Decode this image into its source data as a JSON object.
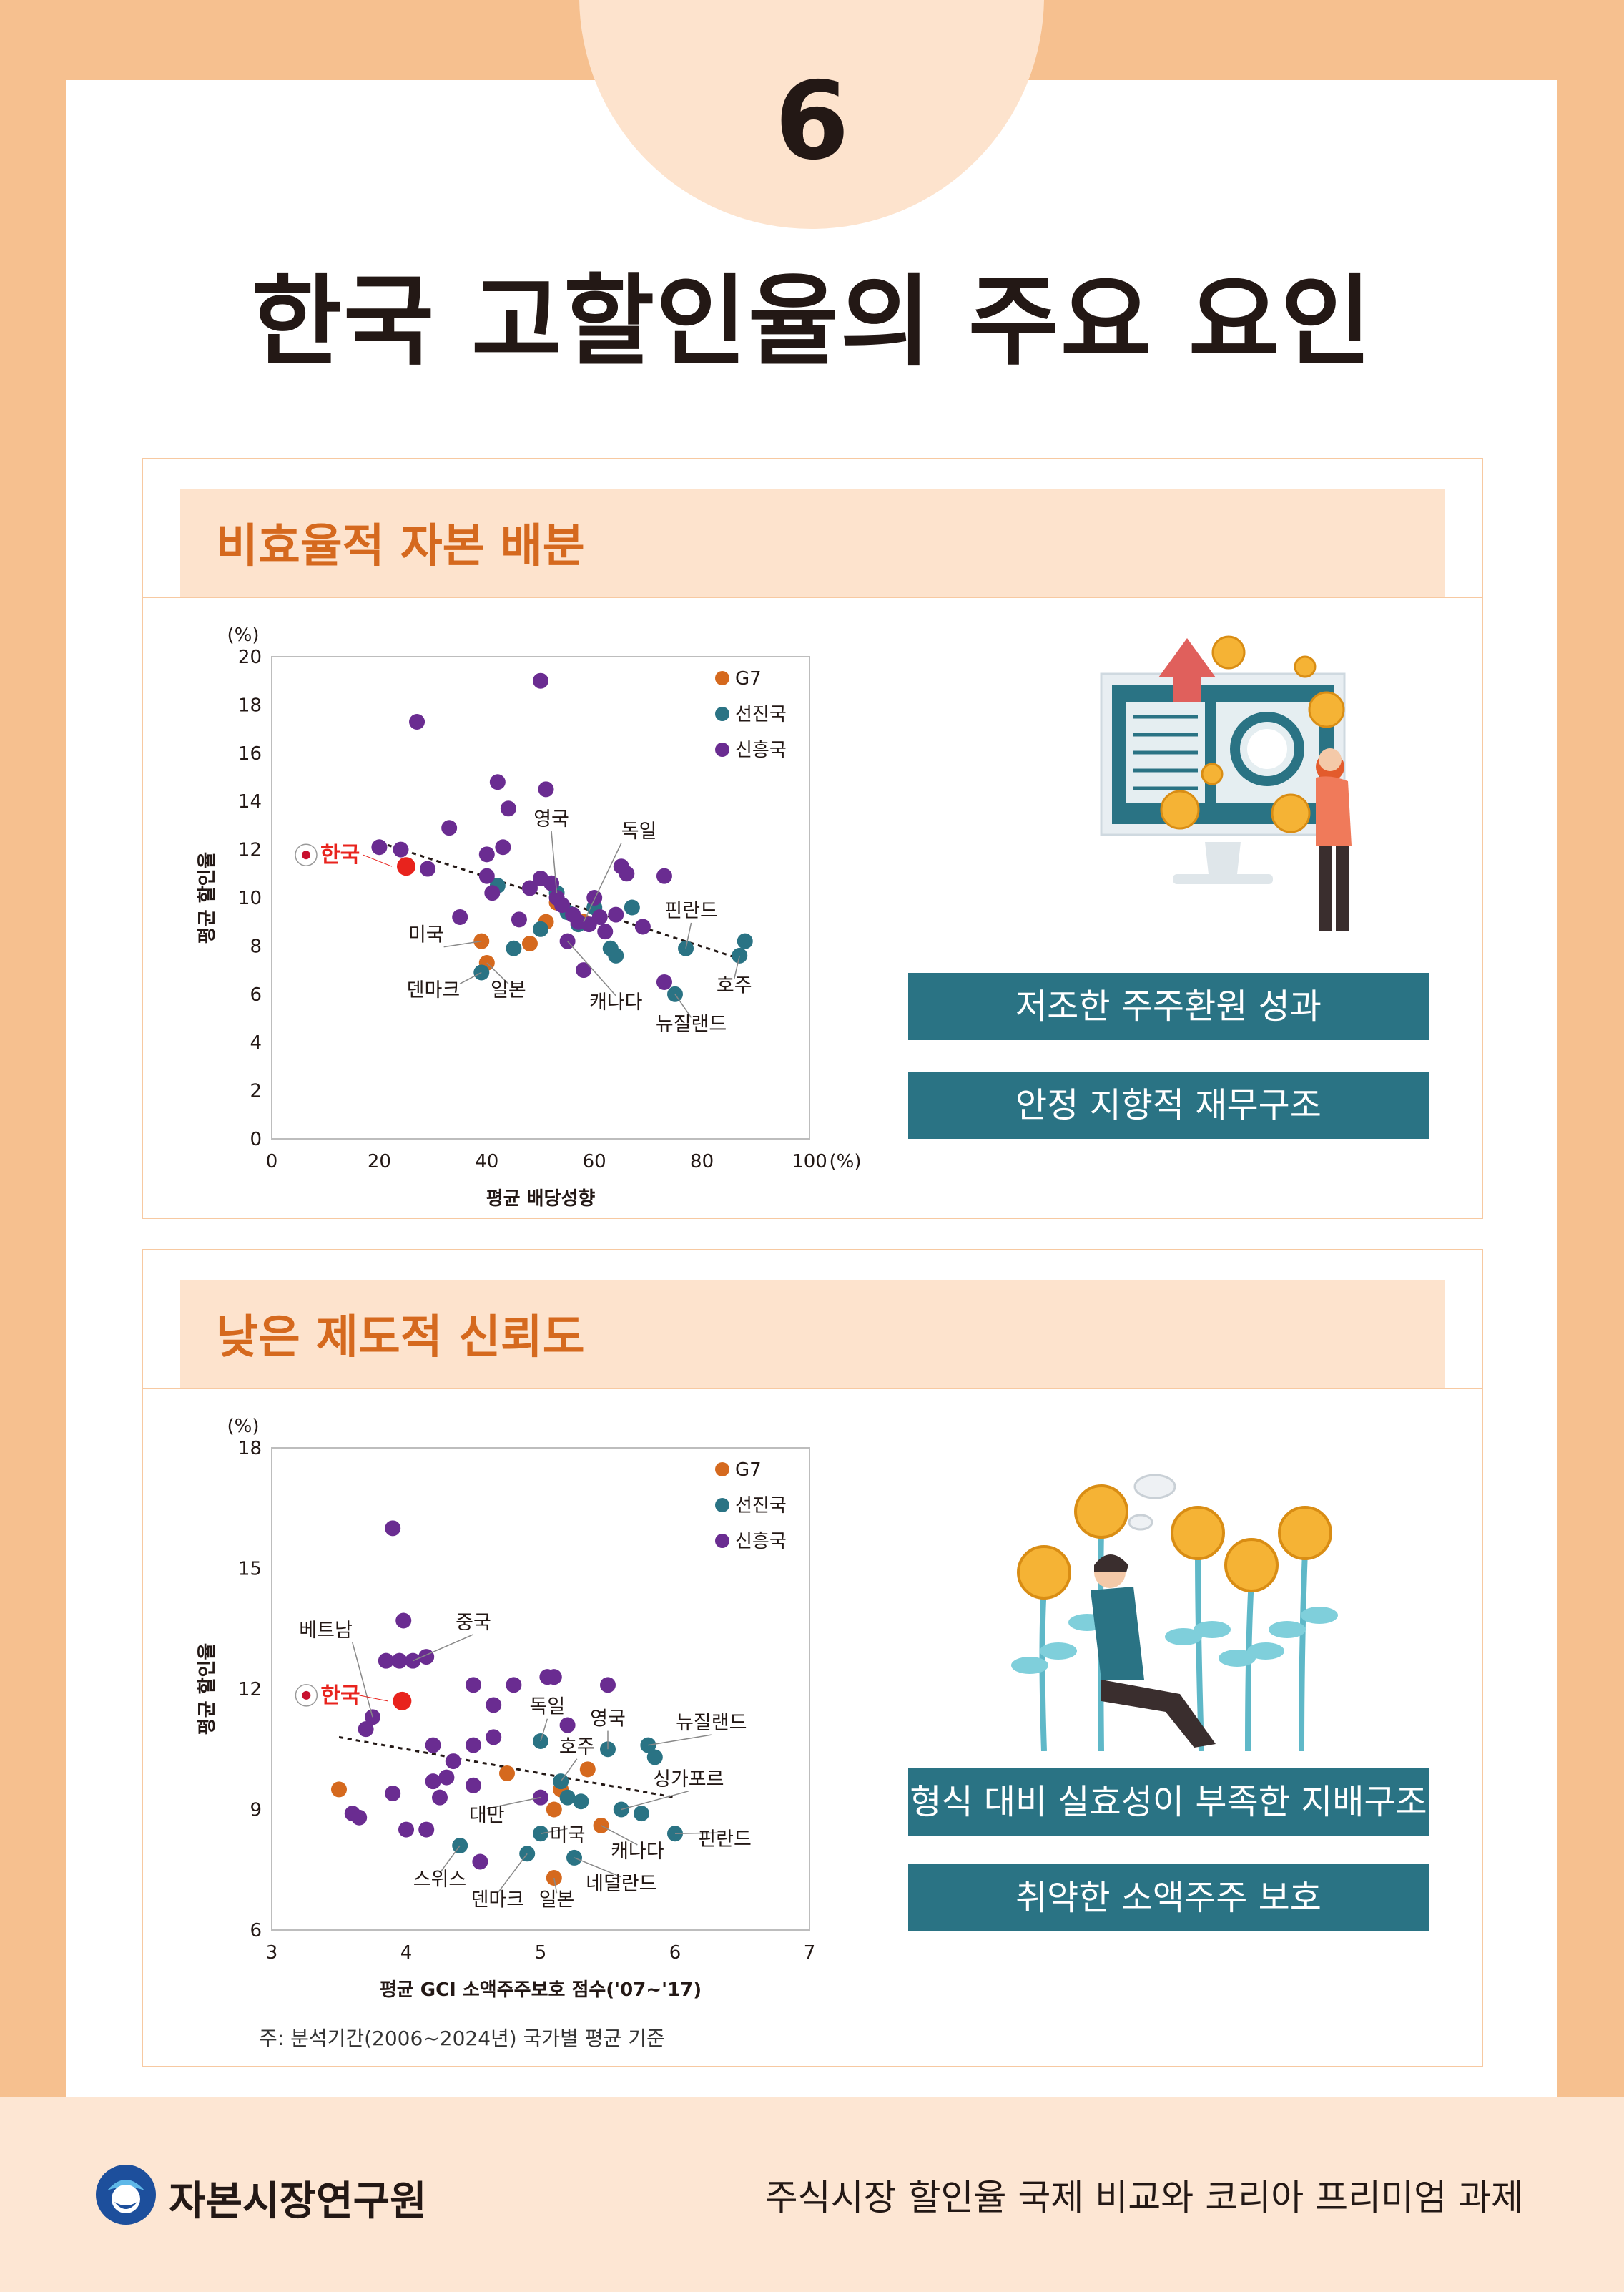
{
  "page": {
    "number": "6",
    "title": "한국 고할인율의 주요 요인"
  },
  "section1": {
    "title": "비효율적 자본 배분",
    "tag1": "저조한 주주환원 성과",
    "tag2": "안정 지향적 재무구조"
  },
  "section2": {
    "title": "낮은 제도적 신뢰도",
    "tag1": "형식 대비 실효성이 부족한 지배구조",
    "tag2": "취약한 소액주주 보호",
    "footnote": "주: 분석기간(2006~2024년) 국가별 평균 기준"
  },
  "footer": {
    "org": "자본시장연구원",
    "report_title": "주식시장 할인율 국제 비교와 코리아 프리미엄 과제"
  },
  "colors": {
    "G7": "#d5691e",
    "선진국": "#2a7384",
    "신흥국": "#6a2c91",
    "korea": "#e8231d",
    "accent": "#d5691e"
  },
  "chart_data": [
    {
      "type": "scatter",
      "xlabel": "평균 배당성향",
      "ylabel": "평균 할인율",
      "y_unit": "(%)",
      "x_unit": "(%)",
      "xlim": [
        0,
        100
      ],
      "ylim": [
        0,
        20
      ],
      "xticks": [
        "0",
        "20",
        "40",
        "60",
        "80",
        "100"
      ],
      "yticks": [
        "0",
        "2",
        "4",
        "6",
        "8",
        "10",
        "12",
        "14",
        "16",
        "18",
        "20"
      ],
      "legend": [
        "G7",
        "선진국",
        "신흥국"
      ],
      "legend_position": "top-right",
      "trendline": {
        "x": [
          20,
          88
        ],
        "y": [
          12.3,
          7.4
        ]
      },
      "korea": {
        "label": "한국",
        "x": 25,
        "y": 11.3
      },
      "series": [
        {
          "name": "G7",
          "points": [
            [
              39,
              8.2
            ],
            [
              40,
              7.3
            ],
            [
              48,
              8.1
            ],
            [
              51,
              9.0
            ],
            [
              53,
              9.8
            ],
            [
              58,
              9.0
            ]
          ]
        },
        {
          "name": "선진국",
          "points": [
            [
              39,
              6.9
            ],
            [
              42,
              10.5
            ],
            [
              45,
              7.9
            ],
            [
              50,
              8.7
            ],
            [
              53,
              10.2
            ],
            [
              55,
              9.4
            ],
            [
              57,
              8.9
            ],
            [
              60,
              9.6
            ],
            [
              63,
              7.9
            ],
            [
              64,
              7.6
            ],
            [
              67,
              9.6
            ],
            [
              75,
              6.0
            ],
            [
              77,
              7.9
            ],
            [
              87,
              7.6
            ],
            [
              88,
              8.2
            ]
          ]
        },
        {
          "name": "신흥국",
          "points": [
            [
              20,
              12.1
            ],
            [
              27,
              17.3
            ],
            [
              24,
              12.0
            ],
            [
              29,
              11.2
            ],
            [
              33,
              12.9
            ],
            [
              35,
              9.2
            ],
            [
              40,
              11.8
            ],
            [
              40,
              10.9
            ],
            [
              41,
              10.2
            ],
            [
              42,
              14.8
            ],
            [
              43,
              12.1
            ],
            [
              44,
              13.7
            ],
            [
              46,
              9.1
            ],
            [
              48,
              10.4
            ],
            [
              50,
              10.8
            ],
            [
              50,
              19.0
            ],
            [
              51,
              14.5
            ],
            [
              52,
              10.6
            ],
            [
              53,
              10.0
            ],
            [
              54,
              9.7
            ],
            [
              55,
              8.2
            ],
            [
              56,
              9.3
            ],
            [
              57,
              9.0
            ],
            [
              58,
              7.0
            ],
            [
              59,
              8.9
            ],
            [
              60,
              10.0
            ],
            [
              61,
              9.2
            ],
            [
              62,
              8.6
            ],
            [
              64,
              9.3
            ],
            [
              65,
              11.3
            ],
            [
              66,
              11.0
            ],
            [
              69,
              8.8
            ],
            [
              73,
              6.5
            ],
            [
              73,
              10.9
            ]
          ]
        }
      ],
      "annotations": [
        "영국",
        "독일",
        "핀란드",
        "미국",
        "덴마크",
        "일본",
        "캐나다",
        "호주",
        "뉴질랜드"
      ]
    },
    {
      "type": "scatter",
      "xlabel": "평균 GCI 소액주주보호 점수('07~'17)",
      "ylabel": "평균 할인율",
      "y_unit": "(%)",
      "xlim": [
        3,
        7
      ],
      "ylim": [
        6,
        18
      ],
      "xticks": [
        "3",
        "4",
        "5",
        "6",
        "7"
      ],
      "yticks": [
        "6",
        "9",
        "12",
        "15",
        "18"
      ],
      "legend": [
        "G7",
        "선진국",
        "신흥국"
      ],
      "legend_position": "top-right",
      "trendline": {
        "x": [
          3.5,
          6.0
        ],
        "y": [
          10.8,
          9.3
        ]
      },
      "korea": {
        "label": "한국",
        "x": 3.97,
        "y": 11.7
      },
      "series": [
        {
          "name": "G7",
          "points": [
            [
              3.5,
              9.5
            ],
            [
              4.75,
              9.9
            ],
            [
              5.1,
              9.0
            ],
            [
              5.15,
              9.5
            ],
            [
              5.35,
              10.0
            ],
            [
              5.45,
              8.6
            ],
            [
              5.1,
              7.3
            ]
          ]
        },
        {
          "name": "선진국",
          "points": [
            [
              4.4,
              8.1
            ],
            [
              4.9,
              7.9
            ],
            [
              5.0,
              8.4
            ],
            [
              5.0,
              10.7
            ],
            [
              5.15,
              9.7
            ],
            [
              5.2,
              9.3
            ],
            [
              5.3,
              9.2
            ],
            [
              5.5,
              10.5
            ],
            [
              5.6,
              9.0
            ],
            [
              5.8,
              10.6
            ],
            [
              5.85,
              10.3
            ],
            [
              5.75,
              8.9
            ],
            [
              6.0,
              8.4
            ],
            [
              5.25,
              7.8
            ]
          ]
        },
        {
          "name": "신흥국",
          "points": [
            [
              3.6,
              8.9
            ],
            [
              3.65,
              8.8
            ],
            [
              3.7,
              11.0
            ],
            [
              3.75,
              11.3
            ],
            [
              3.85,
              12.7
            ],
            [
              3.9,
              16.0
            ],
            [
              3.95,
              12.7
            ],
            [
              3.98,
              13.7
            ],
            [
              4.0,
              8.5
            ],
            [
              4.05,
              12.7
            ],
            [
              3.9,
              9.4
            ],
            [
              4.15,
              12.8
            ],
            [
              4.15,
              8.5
            ],
            [
              4.2,
              9.7
            ],
            [
              4.2,
              10.6
            ],
            [
              4.25,
              9.3
            ],
            [
              4.3,
              9.8
            ],
            [
              4.35,
              10.2
            ],
            [
              4.5,
              9.6
            ],
            [
              4.5,
              10.6
            ],
            [
              4.5,
              12.1
            ],
            [
              4.55,
              7.7
            ],
            [
              4.65,
              11.6
            ],
            [
              4.65,
              10.8
            ],
            [
              4.8,
              12.1
            ],
            [
              5.05,
              12.3
            ],
            [
              5.1,
              12.3
            ],
            [
              5.2,
              11.1
            ],
            [
              5.5,
              12.1
            ],
            [
              5.0,
              9.3
            ]
          ]
        }
      ],
      "annotations": [
        "베트남",
        "중국",
        "독일",
        "영국",
        "호주",
        "뉴질랜드",
        "싱가포르",
        "대만",
        "미국",
        "캐나다",
        "핀란드",
        "네덜란드",
        "스위스",
        "덴마크",
        "일본"
      ]
    }
  ]
}
